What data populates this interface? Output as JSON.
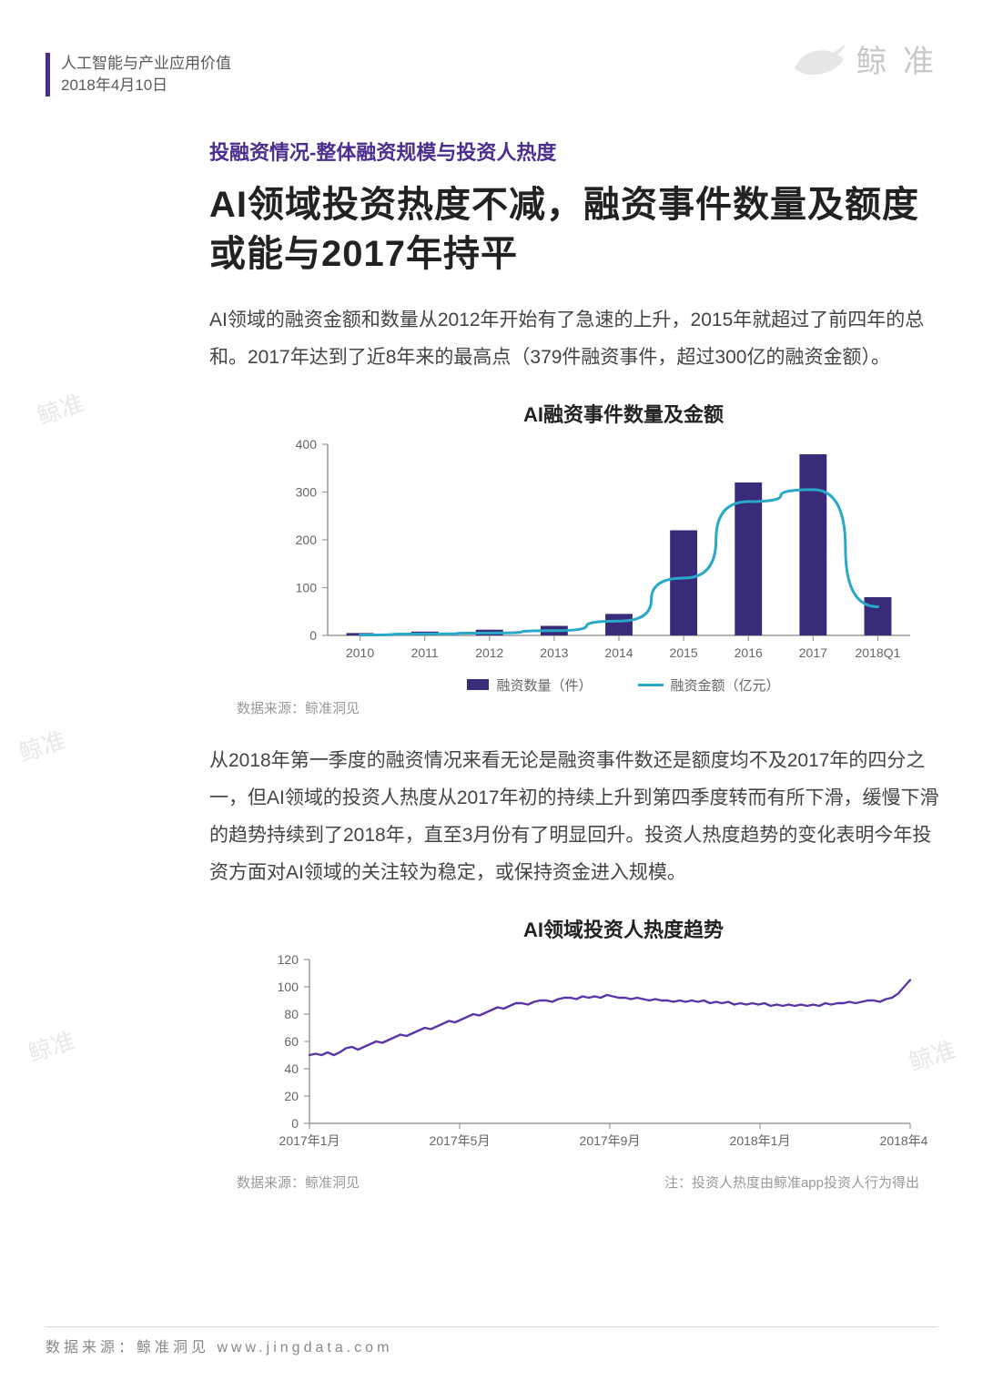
{
  "header": {
    "title": "人工智能与产业应用价值",
    "date": "2018年4月10日",
    "accent_color": "#4b2e8f"
  },
  "logo": {
    "text": "鲸 准",
    "color": "#c8c8c8"
  },
  "subtitle": "投融资情况-整体融资规模与投资人热度",
  "title": "AI领域投资热度不减，融资事件数量及额度或能与2017年持平",
  "para1": "AI领域的融资金额和数量从2012年开始有了急速的上升，2015年就超过了前四年的总和。2017年达到了近8年来的最高点（379件融资事件，超过300亿的融资金额）。",
  "para2": "从2018年第一季度的融资情况来看无论是融资事件数还是额度均不及2017年的四分之一，但AI领域的投资人热度从2017年初的持续上升到第四季度转而有所下滑，缓慢下滑的趋势持续到了2018年，直至3月份有了明显回升。投资人热度趋势的变化表明今年投资方面对AI领域的关注较为稳定，或保持资金进入规模。",
  "chart1": {
    "title": "AI融资事件数量及金额",
    "type": "bar+line",
    "categories": [
      "2010",
      "2011",
      "2012",
      "2013",
      "2014",
      "2015",
      "2016",
      "2017",
      "2018Q1"
    ],
    "bar_values": [
      5,
      8,
      12,
      20,
      45,
      220,
      320,
      379,
      80
    ],
    "line_values": [
      1,
      3,
      5,
      10,
      30,
      120,
      280,
      305,
      60
    ],
    "ylim": [
      0,
      400
    ],
    "ytick_step": 100,
    "bar_color": "#3a2a7a",
    "line_color": "#2aa8c9",
    "axis_color": "#9a9a9a",
    "label_fontsize": 14,
    "bar_width": 0.42,
    "legend": {
      "bar": "融资数量（件）",
      "line": "融资金额（亿元）"
    },
    "source": "数据来源：鲸准洞见"
  },
  "chart2": {
    "title": "AI领域投资人热度趋势",
    "type": "line",
    "x_labels": [
      "2017年1月",
      "2017年5月",
      "2017年9月",
      "2018年1月",
      "2018年4月"
    ],
    "ylim": [
      0,
      120
    ],
    "ytick_step": 20,
    "line_color": "#5a35a8",
    "axis_color": "#9a9a9a",
    "label_fontsize": 14,
    "series": [
      50,
      51,
      50,
      52,
      50,
      52,
      55,
      56,
      54,
      56,
      58,
      60,
      59,
      61,
      63,
      65,
      64,
      66,
      68,
      70,
      69,
      71,
      73,
      75,
      74,
      76,
      78,
      80,
      79,
      81,
      83,
      85,
      84,
      86,
      88,
      88,
      87,
      89,
      90,
      90,
      89,
      91,
      92,
      92,
      91,
      93,
      92,
      93,
      92,
      94,
      93,
      92,
      92,
      91,
      92,
      91,
      90,
      91,
      90,
      90,
      89,
      90,
      89,
      90,
      89,
      90,
      88,
      89,
      88,
      89,
      87,
      88,
      87,
      88,
      87,
      88,
      86,
      87,
      86,
      87,
      86,
      87,
      86,
      87,
      86,
      88,
      87,
      88,
      88,
      89,
      88,
      89,
      90,
      90,
      89,
      91,
      92,
      95,
      100,
      105
    ],
    "source": "数据来源：鲸准洞见",
    "note": "注：投资人热度由鲸准app投资人行为得出"
  },
  "footer_source": "数据来源：鲸准洞见 www.jingdata.com",
  "watermark_text": "鲸准"
}
